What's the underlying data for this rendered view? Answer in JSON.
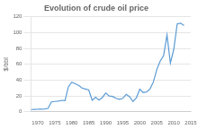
{
  "chart_data": {
    "type": "line",
    "title": "Evolution of crude oil price",
    "ylabel": "$/bbl",
    "x": [
      1968,
      1969,
      1970,
      1971,
      1972,
      1973,
      1974,
      1975,
      1976,
      1977,
      1978,
      1979,
      1980,
      1981,
      1982,
      1983,
      1984,
      1985,
      1986,
      1987,
      1988,
      1989,
      1990,
      1991,
      1992,
      1993,
      1994,
      1995,
      1996,
      1997,
      1998,
      1999,
      2000,
      2001,
      2002,
      2003,
      2004,
      2005,
      2006,
      2007,
      2008,
      2009,
      2010,
      2011,
      2012,
      2013
    ],
    "values": [
      2.9,
      3.1,
      3.2,
      3.4,
      3.6,
      4.3,
      12.5,
      13.1,
      13.6,
      14.5,
      14.0,
      31.6,
      37.4,
      35.5,
      33.5,
      30.0,
      28.8,
      27.5,
      14.5,
      18.5,
      14.9,
      18.2,
      23.7,
      20.0,
      19.4,
      17.0,
      15.8,
      17.0,
      22.1,
      19.1,
      13.0,
      17.8,
      28.5,
      24.4,
      25.0,
      28.8,
      37.8,
      53.4,
      64.0,
      71.1,
      97.0,
      61.5,
      79.0,
      111.0,
      112.0,
      109.0
    ],
    "color": "#5b9bd5",
    "xlim": [
      1968,
      2015
    ],
    "xticks": [
      1970,
      1975,
      1980,
      1985,
      1990,
      1995,
      2000,
      2005,
      2010,
      2015
    ],
    "ylim": [
      0,
      120
    ],
    "yticks": [
      0,
      20,
      40,
      60,
      80,
      100,
      120
    ],
    "grid": "y"
  }
}
